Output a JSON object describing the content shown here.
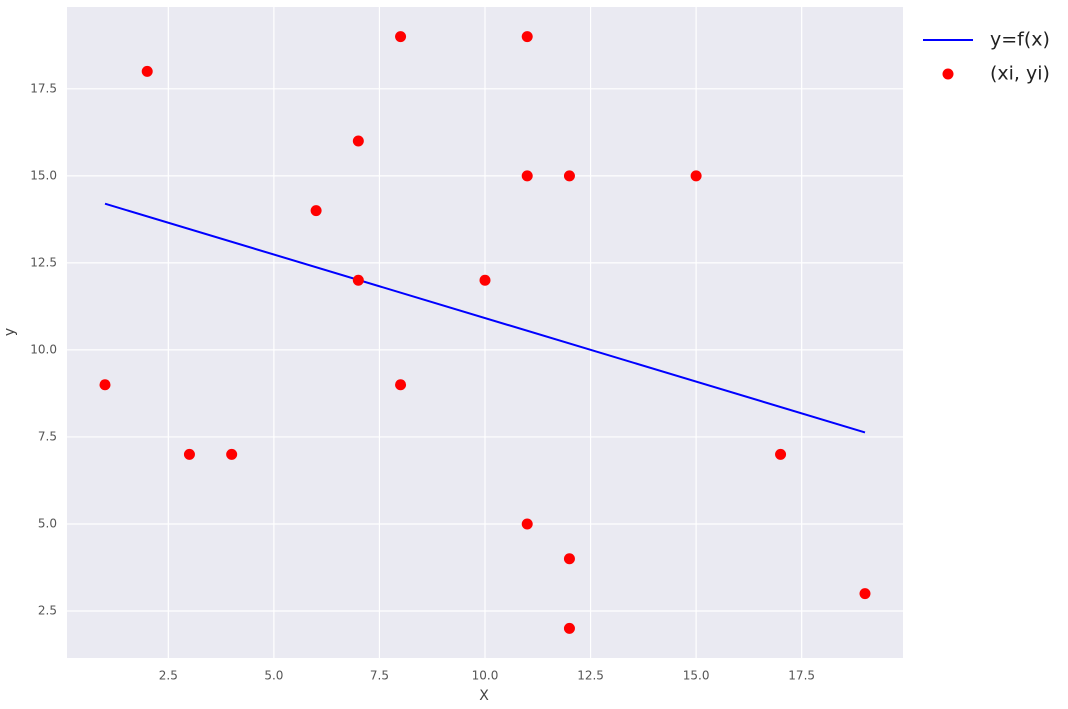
{
  "chart_data": {
    "type": "scatter",
    "xlabel": "X",
    "ylabel": "y",
    "xlim": [
      0.1,
      19.9
    ],
    "xticks": [
      2.5,
      {
        "value": 5,
        "label": "5.0"
      },
      7.5,
      {
        "value": 10,
        "label": "10.0"
      },
      12.5,
      {
        "value": 15,
        "label": "15.0"
      },
      17.5
    ],
    "ylim": [
      1.15,
      19.85
    ],
    "yticks": [
      2.5,
      {
        "value": 5,
        "label": "5.0"
      },
      7.5,
      {
        "value": 10,
        "label": "10.0"
      },
      12.5,
      {
        "value": 15,
        "label": "15.0"
      },
      17.5
    ],
    "grid": true,
    "legend": "outside",
    "series": [
      {
        "name": "y=f(x)",
        "type": "line",
        "color": "#0000ff",
        "x": [
          1,
          19
        ],
        "values": [
          14.2,
          7.63
        ]
      },
      {
        "name": "(xi, yi)",
        "type": "scatter",
        "color": "#ff0000",
        "x": [
          1,
          2,
          3,
          4,
          6,
          7,
          7,
          8,
          8,
          10,
          11,
          11,
          11,
          12,
          12,
          12,
          15,
          17,
          19
        ],
        "values": [
          9,
          18,
          7,
          7,
          14,
          16,
          12,
          19,
          9,
          12,
          19,
          15,
          5,
          15,
          4,
          2,
          15,
          7,
          3
        ]
      }
    ]
  }
}
